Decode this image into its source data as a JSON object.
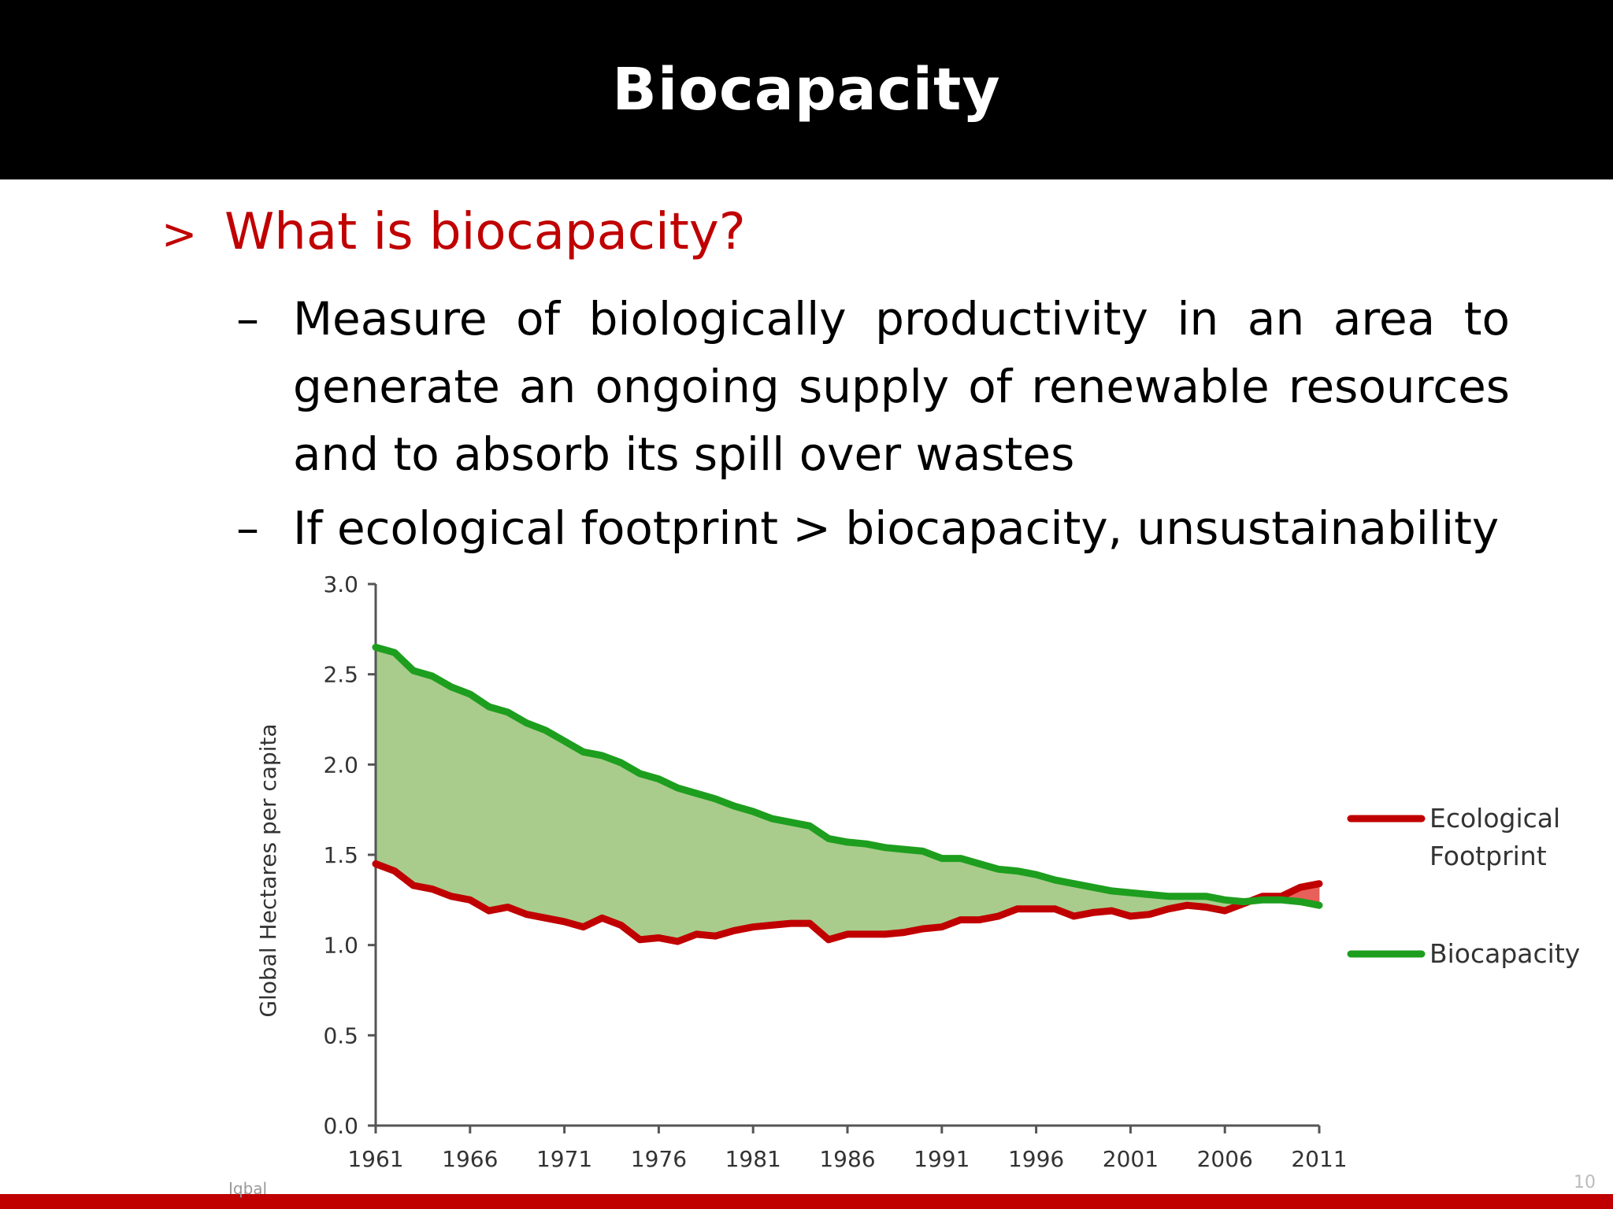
{
  "slide": {
    "title": "Biocapacity",
    "bullet_marker": ">",
    "sub_marker": "–",
    "bullet": "What is biocapacity?",
    "sub_bullets": [
      "Measure of biologically productivity in an area to generate an ongoing supply of renewable resources and to absorb its spill over wastes",
      "If ecological footprint > biocapacity, unsustainability"
    ],
    "footer_author": "Iqbal",
    "page_number": "10"
  },
  "colors": {
    "title_bg": "#000000",
    "title_text": "#ffffff",
    "accent_red": "#c00000",
    "footprint_line": "#c00000",
    "biocapacity_line": "#1e9e1e",
    "surplus_fill": "#a9cc8c",
    "deficit_fill": "#e8605a"
  },
  "chart_data": {
    "type": "line",
    "title": "",
    "xlabel": "",
    "ylabel": "Global Hectares per capita",
    "ylim": [
      0,
      3.0
    ],
    "xlim": [
      1961,
      2011
    ],
    "yticks": [
      "0.0",
      "0.5",
      "1.0",
      "1.5",
      "2.0",
      "2.5",
      "3.0"
    ],
    "xticks": [
      "1961",
      "1966",
      "1971",
      "1976",
      "1981",
      "1986",
      "1991",
      "1996",
      "2001",
      "2006",
      "2011"
    ],
    "legend_position": "right",
    "x": [
      1961,
      1962,
      1963,
      1964,
      1965,
      1966,
      1967,
      1968,
      1969,
      1970,
      1971,
      1972,
      1973,
      1974,
      1975,
      1976,
      1977,
      1978,
      1979,
      1980,
      1981,
      1982,
      1983,
      1984,
      1985,
      1986,
      1987,
      1988,
      1989,
      1990,
      1991,
      1992,
      1993,
      1994,
      1995,
      1996,
      1997,
      1998,
      1999,
      2000,
      2001,
      2002,
      2003,
      2004,
      2005,
      2006,
      2007,
      2008,
      2009,
      2010,
      2011
    ],
    "series": [
      {
        "name": "Ecological Footprint",
        "values": [
          1.45,
          1.41,
          1.33,
          1.31,
          1.27,
          1.25,
          1.19,
          1.21,
          1.17,
          1.15,
          1.13,
          1.1,
          1.15,
          1.11,
          1.03,
          1.04,
          1.02,
          1.06,
          1.05,
          1.08,
          1.1,
          1.11,
          1.12,
          1.12,
          1.03,
          1.06,
          1.06,
          1.06,
          1.07,
          1.09,
          1.1,
          1.14,
          1.14,
          1.16,
          1.2,
          1.2,
          1.2,
          1.16,
          1.18,
          1.19,
          1.16,
          1.17,
          1.2,
          1.22,
          1.21,
          1.19,
          1.23,
          1.27,
          1.27,
          1.32,
          1.34
        ]
      },
      {
        "name": "Biocapacity",
        "values": [
          2.65,
          2.62,
          2.52,
          2.49,
          2.43,
          2.39,
          2.32,
          2.29,
          2.23,
          2.19,
          2.13,
          2.07,
          2.05,
          2.01,
          1.95,
          1.92,
          1.87,
          1.84,
          1.81,
          1.77,
          1.74,
          1.7,
          1.68,
          1.66,
          1.59,
          1.57,
          1.56,
          1.54,
          1.53,
          1.52,
          1.48,
          1.48,
          1.45,
          1.42,
          1.41,
          1.39,
          1.36,
          1.34,
          1.32,
          1.3,
          1.29,
          1.28,
          1.27,
          1.27,
          1.27,
          1.25,
          1.24,
          1.25,
          1.25,
          1.24,
          1.22
        ]
      }
    ]
  }
}
